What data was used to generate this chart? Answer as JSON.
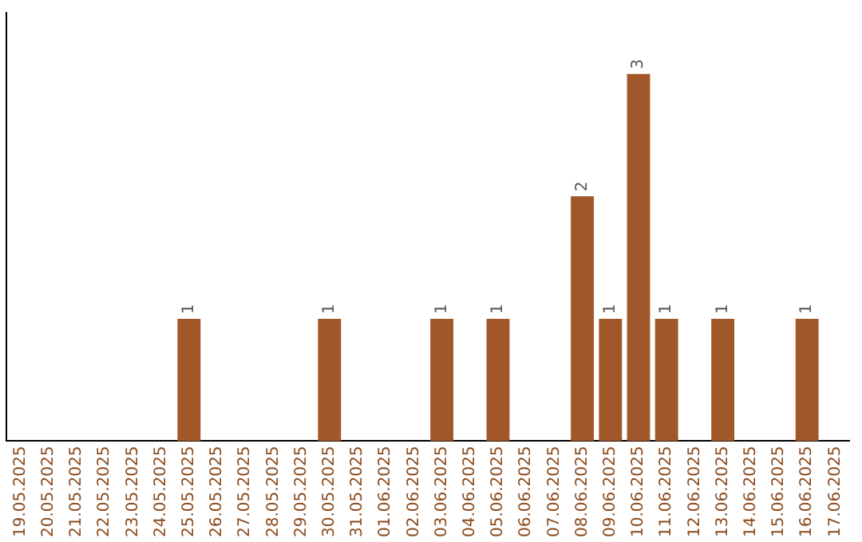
{
  "chart_data": {
    "type": "bar",
    "categories": [
      "19.05.2025",
      "20.05.2025",
      "21.05.2025",
      "22.05.2025",
      "23.05.2025",
      "24.05.2025",
      "25.05.2025",
      "26.05.2025",
      "27.05.2025",
      "28.05.2025",
      "29.05.2025",
      "30.05.2025",
      "31.05.2025",
      "01.06.2025",
      "02.06.2025",
      "03.06.2025",
      "04.06.2025",
      "05.06.2025",
      "06.06.2025",
      "07.06.2025",
      "08.06.2025",
      "09.06.2025",
      "10.06.2025",
      "11.06.2025",
      "12.06.2025",
      "13.06.2025",
      "14.06.2025",
      "15.06.2025",
      "16.06.2025",
      "17.06.2025"
    ],
    "values": [
      0,
      0,
      0,
      0,
      0,
      0,
      1,
      0,
      0,
      0,
      0,
      1,
      0,
      0,
      0,
      1,
      0,
      1,
      0,
      0,
      2,
      1,
      3,
      1,
      0,
      1,
      0,
      0,
      1,
      0
    ],
    "value_labels": [
      null,
      null,
      null,
      null,
      null,
      null,
      "1",
      null,
      null,
      null,
      null,
      "1",
      null,
      null,
      null,
      "1",
      null,
      "1",
      null,
      null,
      "2",
      "1",
      "3",
      "1",
      null,
      "1",
      null,
      null,
      "1",
      null
    ],
    "color": "#a0582a",
    "grid": false,
    "legend": false,
    "tick_labels": "x"
  }
}
